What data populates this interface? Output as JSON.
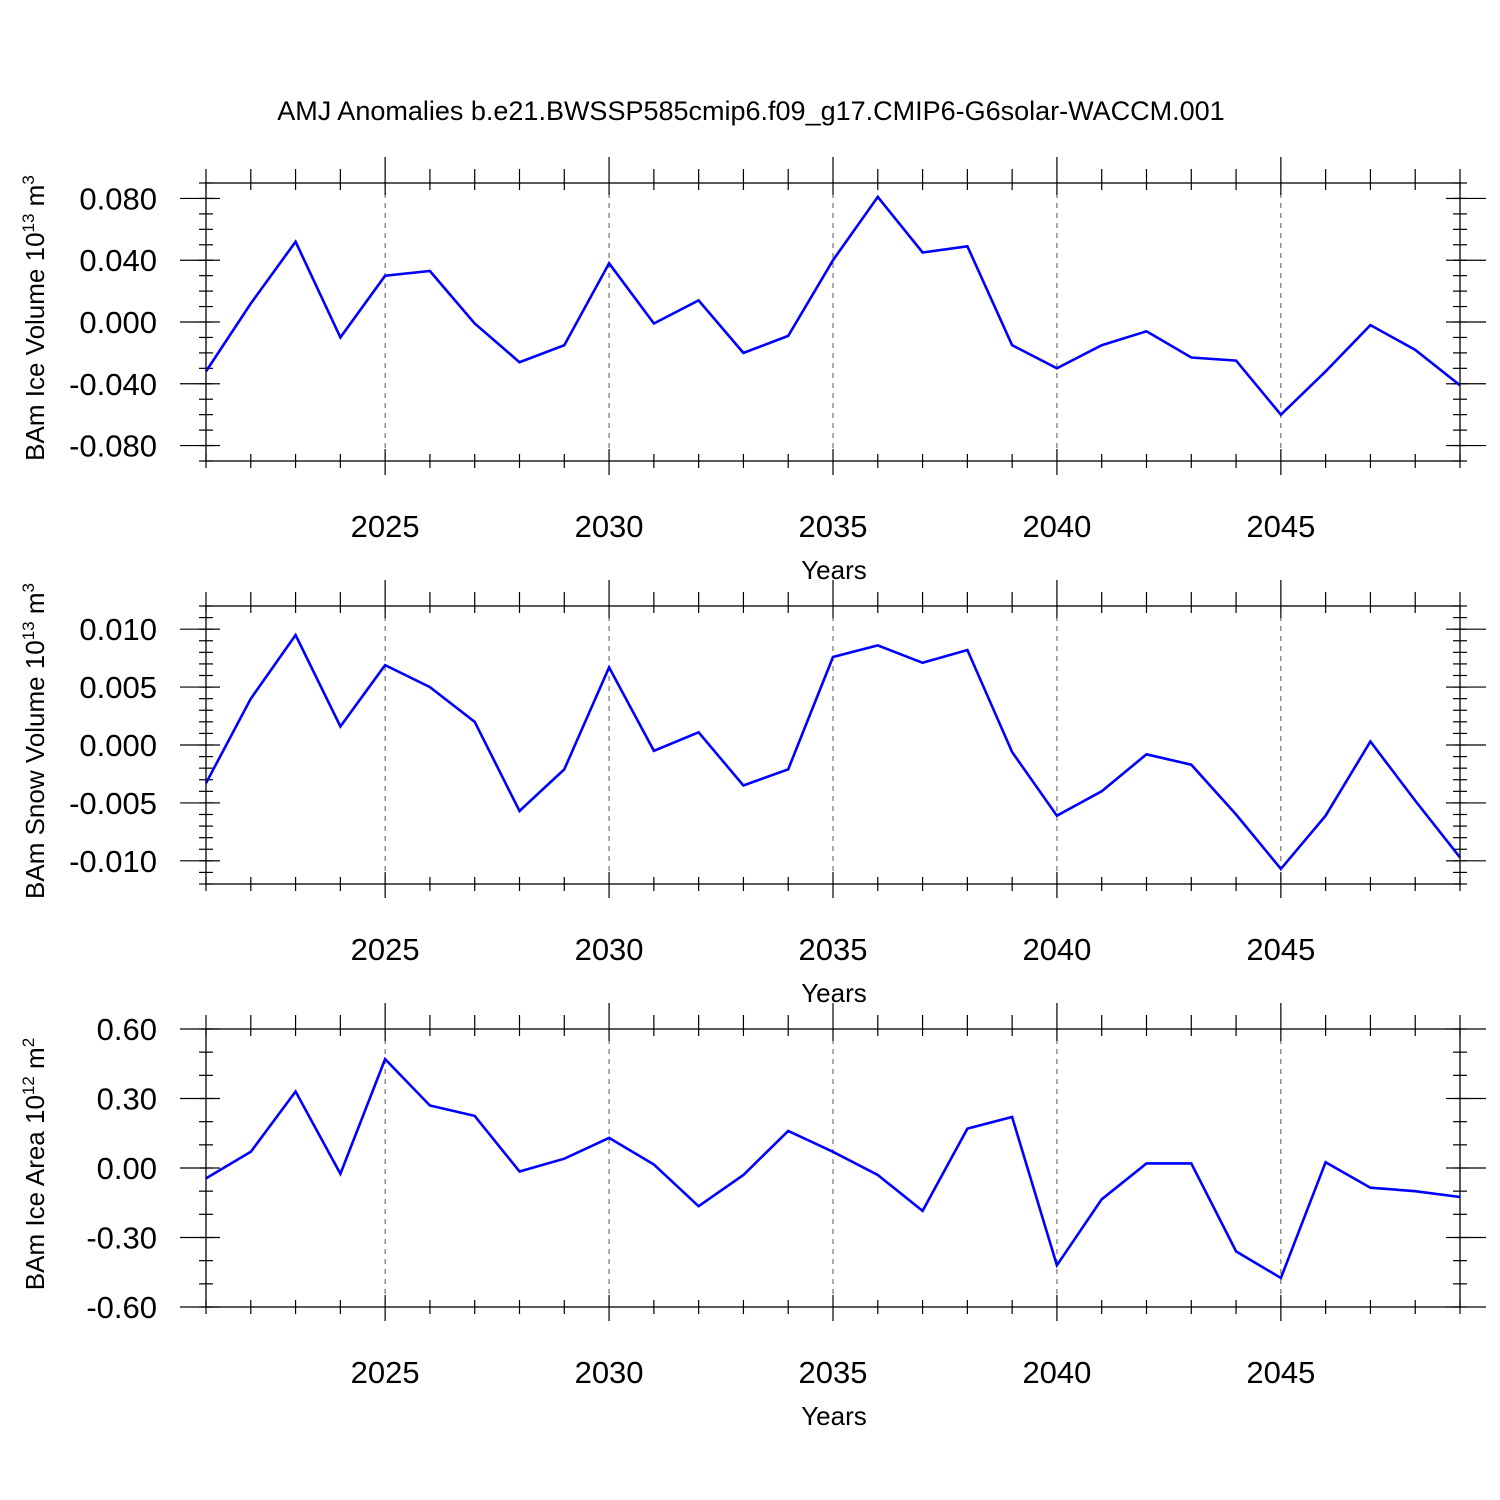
{
  "title": "AMJ Anomalies b.e21.BWSSP585cmip6.f09_g17.CMIP6-G6solar-WACCM.001",
  "colors": {
    "line": "#0000ff",
    "axes": "#000000",
    "grid": "#555555"
  },
  "chart_data": [
    {
      "type": "line",
      "ylabel": {
        "base": "BAm Ice Volume 10",
        "exp": "13",
        "unit": " m",
        "unit_exp": "3"
      },
      "xlabel": "Years",
      "xlim": [
        2021,
        2049
      ],
      "ylim": [
        -0.09,
        0.09
      ],
      "yticks": [
        0.08,
        0.04,
        0.0,
        -0.04,
        -0.08
      ],
      "ytick_labels": [
        "0.080",
        "0.040",
        "0.000",
        "-0.040",
        "-0.080"
      ],
      "yminor_step": 0.01,
      "xticks": [
        2025,
        2030,
        2035,
        2040,
        2045
      ],
      "xtick_labels": [
        "2025",
        "2030",
        "2035",
        "2040",
        "2045"
      ],
      "grid": "vertical dashed at major x ticks",
      "x": [
        2021,
        2022,
        2023,
        2024,
        2025,
        2026,
        2027,
        2028,
        2029,
        2030,
        2031,
        2032,
        2033,
        2034,
        2035,
        2036,
        2037,
        2038,
        2039,
        2040,
        2041,
        2042,
        2043,
        2044,
        2045,
        2046,
        2047,
        2048,
        2049
      ],
      "y": [
        -0.032,
        0.012,
        0.052,
        -0.01,
        0.03,
        0.033,
        -0.001,
        -0.026,
        -0.015,
        0.038,
        -0.001,
        0.014,
        -0.02,
        -0.009,
        0.04,
        0.081,
        0.045,
        0.049,
        -0.015,
        -0.03,
        -0.015,
        -0.006,
        -0.023,
        -0.025,
        -0.06,
        -0.032,
        -0.002,
        -0.018,
        -0.041
      ]
    },
    {
      "type": "line",
      "ylabel": {
        "base": "BAm Snow Volume 10",
        "exp": "13",
        "unit": " m",
        "unit_exp": "3"
      },
      "xlabel": "Years",
      "xlim": [
        2021,
        2049
      ],
      "ylim": [
        -0.012,
        0.012
      ],
      "yticks": [
        0.01,
        0.005,
        0.0,
        -0.005,
        -0.01
      ],
      "ytick_labels": [
        "0.010",
        "0.005",
        "0.000",
        "-0.005",
        "-0.010"
      ],
      "yminor_step": 0.001,
      "xticks": [
        2025,
        2030,
        2035,
        2040,
        2045
      ],
      "xtick_labels": [
        "2025",
        "2030",
        "2035",
        "2040",
        "2045"
      ],
      "grid": "vertical dashed at major x ticks",
      "x": [
        2021,
        2022,
        2023,
        2024,
        2025,
        2026,
        2027,
        2028,
        2029,
        2030,
        2031,
        2032,
        2033,
        2034,
        2035,
        2036,
        2037,
        2038,
        2039,
        2040,
        2041,
        2042,
        2043,
        2044,
        2045,
        2046,
        2047,
        2048,
        2049
      ],
      "y": [
        -0.0033,
        0.004,
        0.0095,
        0.0016,
        0.0069,
        0.005,
        0.002,
        -0.0057,
        -0.0021,
        0.0067,
        -0.0005,
        0.0011,
        -0.0035,
        -0.0021,
        0.0076,
        0.0086,
        0.0071,
        0.0082,
        -0.0006,
        -0.0061,
        -0.004,
        -0.0008,
        -0.0017,
        -0.006,
        -0.0107,
        -0.0061,
        0.0003,
        -0.0048,
        -0.0097
      ]
    },
    {
      "type": "line",
      "ylabel": {
        "base": "BAm Ice Area 10",
        "exp": "12",
        "unit": " m",
        "unit_exp": "2"
      },
      "xlabel": "Years",
      "xlim": [
        2021,
        2049
      ],
      "ylim": [
        -0.6,
        0.6
      ],
      "yticks": [
        0.6,
        0.3,
        0.0,
        -0.3,
        -0.6
      ],
      "ytick_labels": [
        "0.60",
        "0.30",
        "0.00",
        "-0.30",
        "-0.60"
      ],
      "yminor_step": 0.1,
      "xticks": [
        2025,
        2030,
        2035,
        2040,
        2045
      ],
      "xtick_labels": [
        "2025",
        "2030",
        "2035",
        "2040",
        "2045"
      ],
      "grid": "vertical dashed at major x ticks",
      "x": [
        2021,
        2022,
        2023,
        2024,
        2025,
        2026,
        2027,
        2028,
        2029,
        2030,
        2031,
        2032,
        2033,
        2034,
        2035,
        2036,
        2037,
        2038,
        2039,
        2040,
        2041,
        2042,
        2043,
        2044,
        2045,
        2046,
        2047,
        2048,
        2049
      ],
      "y": [
        -0.045,
        0.07,
        0.33,
        -0.025,
        0.47,
        0.27,
        0.225,
        -0.015,
        0.04,
        0.13,
        0.015,
        -0.165,
        -0.03,
        0.16,
        0.07,
        -0.03,
        -0.185,
        0.17,
        0.22,
        -0.42,
        -0.135,
        0.02,
        0.02,
        -0.36,
        -0.475,
        0.025,
        -0.085,
        -0.1,
        -0.125
      ]
    }
  ]
}
